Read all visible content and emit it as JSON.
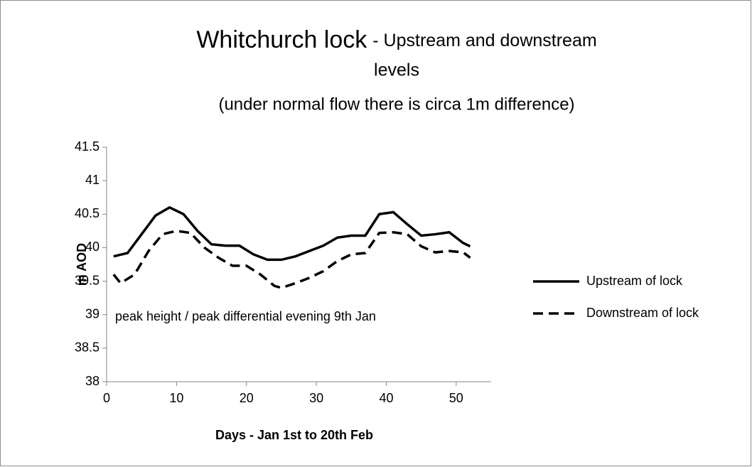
{
  "chart_data": {
    "type": "line",
    "title": "Whitchurch lock",
    "title_suffix": [
      "- Upstream and downstream",
      "levels"
    ],
    "subtitle": "(under normal flow there is circa 1m difference)",
    "annotation": "peak height / peak differential  evening 9th Jan",
    "xlabel": "Days - Jan 1st to 20th Feb",
    "ylabel": "m AOD",
    "xlim": [
      0,
      55
    ],
    "xticks": [
      0,
      10,
      20,
      30,
      40,
      50
    ],
    "ylim": [
      38,
      41.5
    ],
    "yticks": [
      38,
      38.5,
      39,
      39.5,
      40,
      40.5,
      41,
      41.5
    ],
    "legend": "right",
    "series": [
      {
        "name": "Upstream of lock",
        "color": "#000000",
        "dash": "solid",
        "x": [
          1,
          3,
          5,
          7,
          9,
          11,
          13,
          15,
          17,
          19,
          21,
          23,
          25,
          27,
          29,
          31,
          33,
          35,
          37,
          39,
          41,
          43,
          45,
          47,
          49,
          51,
          52
        ],
        "values": [
          39.87,
          39.92,
          40.2,
          40.48,
          40.6,
          40.5,
          40.25,
          40.05,
          40.03,
          40.03,
          39.9,
          39.82,
          39.82,
          39.87,
          39.95,
          40.03,
          40.15,
          40.18,
          40.18,
          40.5,
          40.53,
          40.35,
          40.18,
          40.2,
          40.23,
          40.07,
          40.02
        ]
      },
      {
        "name": "Downstream of lock",
        "color": "#000000",
        "dash": "dashed",
        "x": [
          1,
          2,
          4,
          6,
          8,
          10,
          12,
          14,
          16,
          18,
          20,
          22,
          24,
          25,
          27,
          29,
          31,
          33,
          35,
          37,
          39,
          41,
          43,
          45,
          47,
          49,
          51,
          52
        ],
        "values": [
          39.6,
          39.47,
          39.6,
          39.95,
          40.2,
          40.25,
          40.22,
          40.0,
          39.85,
          39.73,
          39.73,
          39.6,
          39.43,
          39.4,
          39.47,
          39.55,
          39.65,
          39.8,
          39.9,
          39.92,
          40.22,
          40.23,
          40.2,
          40.02,
          39.93,
          39.95,
          39.93,
          39.85
        ]
      }
    ]
  }
}
